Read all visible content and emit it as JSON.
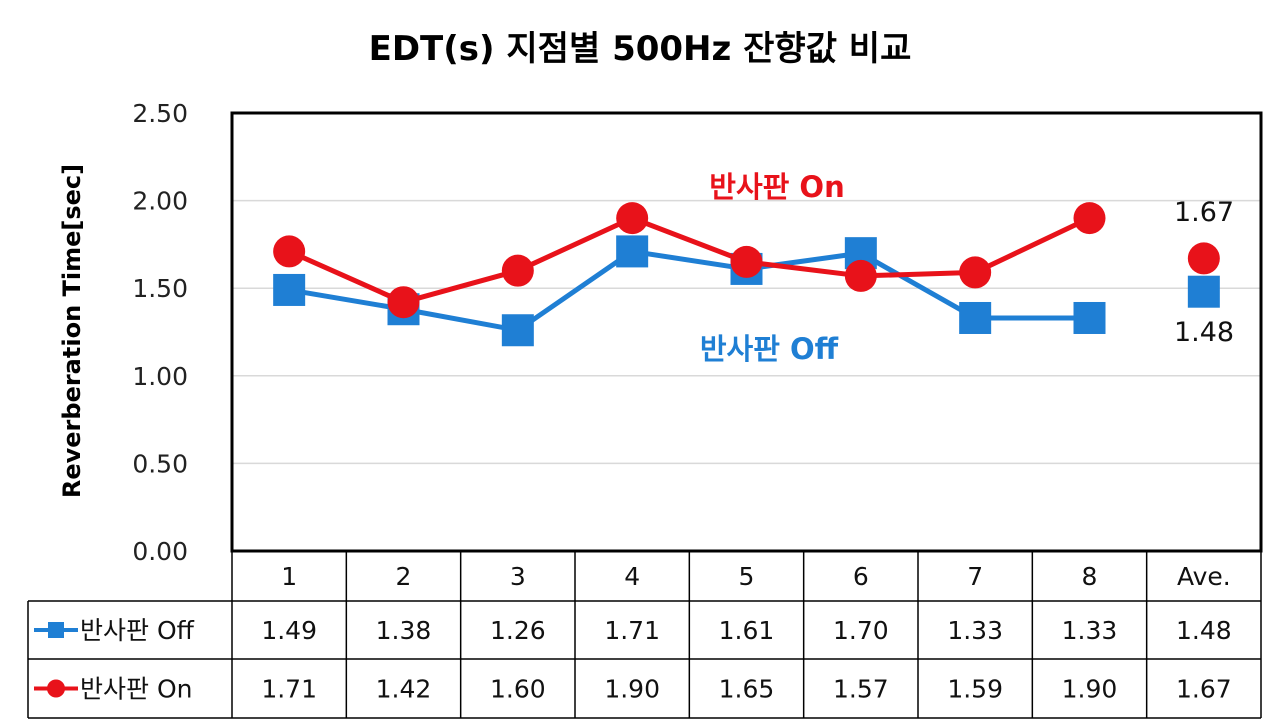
{
  "chart_data": {
    "type": "line",
    "title": "EDT(s) 지점별 500Hz 잔향값 비교",
    "ylabel": "Reverberation Time[sec]",
    "xlabel": "",
    "ylim": [
      0,
      2.5
    ],
    "yticks": [
      "0.00",
      "0.50",
      "1.00",
      "1.50",
      "2.00",
      "2.50"
    ],
    "categories": [
      "1",
      "2",
      "3",
      "4",
      "5",
      "6",
      "7",
      "8",
      "Ave."
    ],
    "grid": true,
    "legend": "data-table",
    "series": [
      {
        "name": "반사판 Off",
        "color": "#1f7fd4",
        "marker": "square",
        "values": [
          1.49,
          1.38,
          1.26,
          1.71,
          1.61,
          1.7,
          1.33,
          1.33,
          1.48
        ],
        "display": [
          "1.49",
          "1.38",
          "1.26",
          "1.71",
          "1.61",
          "1.70",
          "1.33",
          "1.33",
          "1.48"
        ]
      },
      {
        "name": "반사판 On",
        "color": "#e8121a",
        "marker": "circle",
        "values": [
          1.71,
          1.42,
          1.6,
          1.9,
          1.65,
          1.57,
          1.59,
          1.9,
          1.67
        ],
        "display": [
          "1.71",
          "1.42",
          "1.60",
          "1.90",
          "1.65",
          "1.57",
          "1.59",
          "1.90",
          "1.67"
        ]
      }
    ],
    "annotations": {
      "on_label": "반사판 On",
      "off_label": "반사판 Off",
      "avg_on": "1.67",
      "avg_off": "1.48"
    }
  }
}
